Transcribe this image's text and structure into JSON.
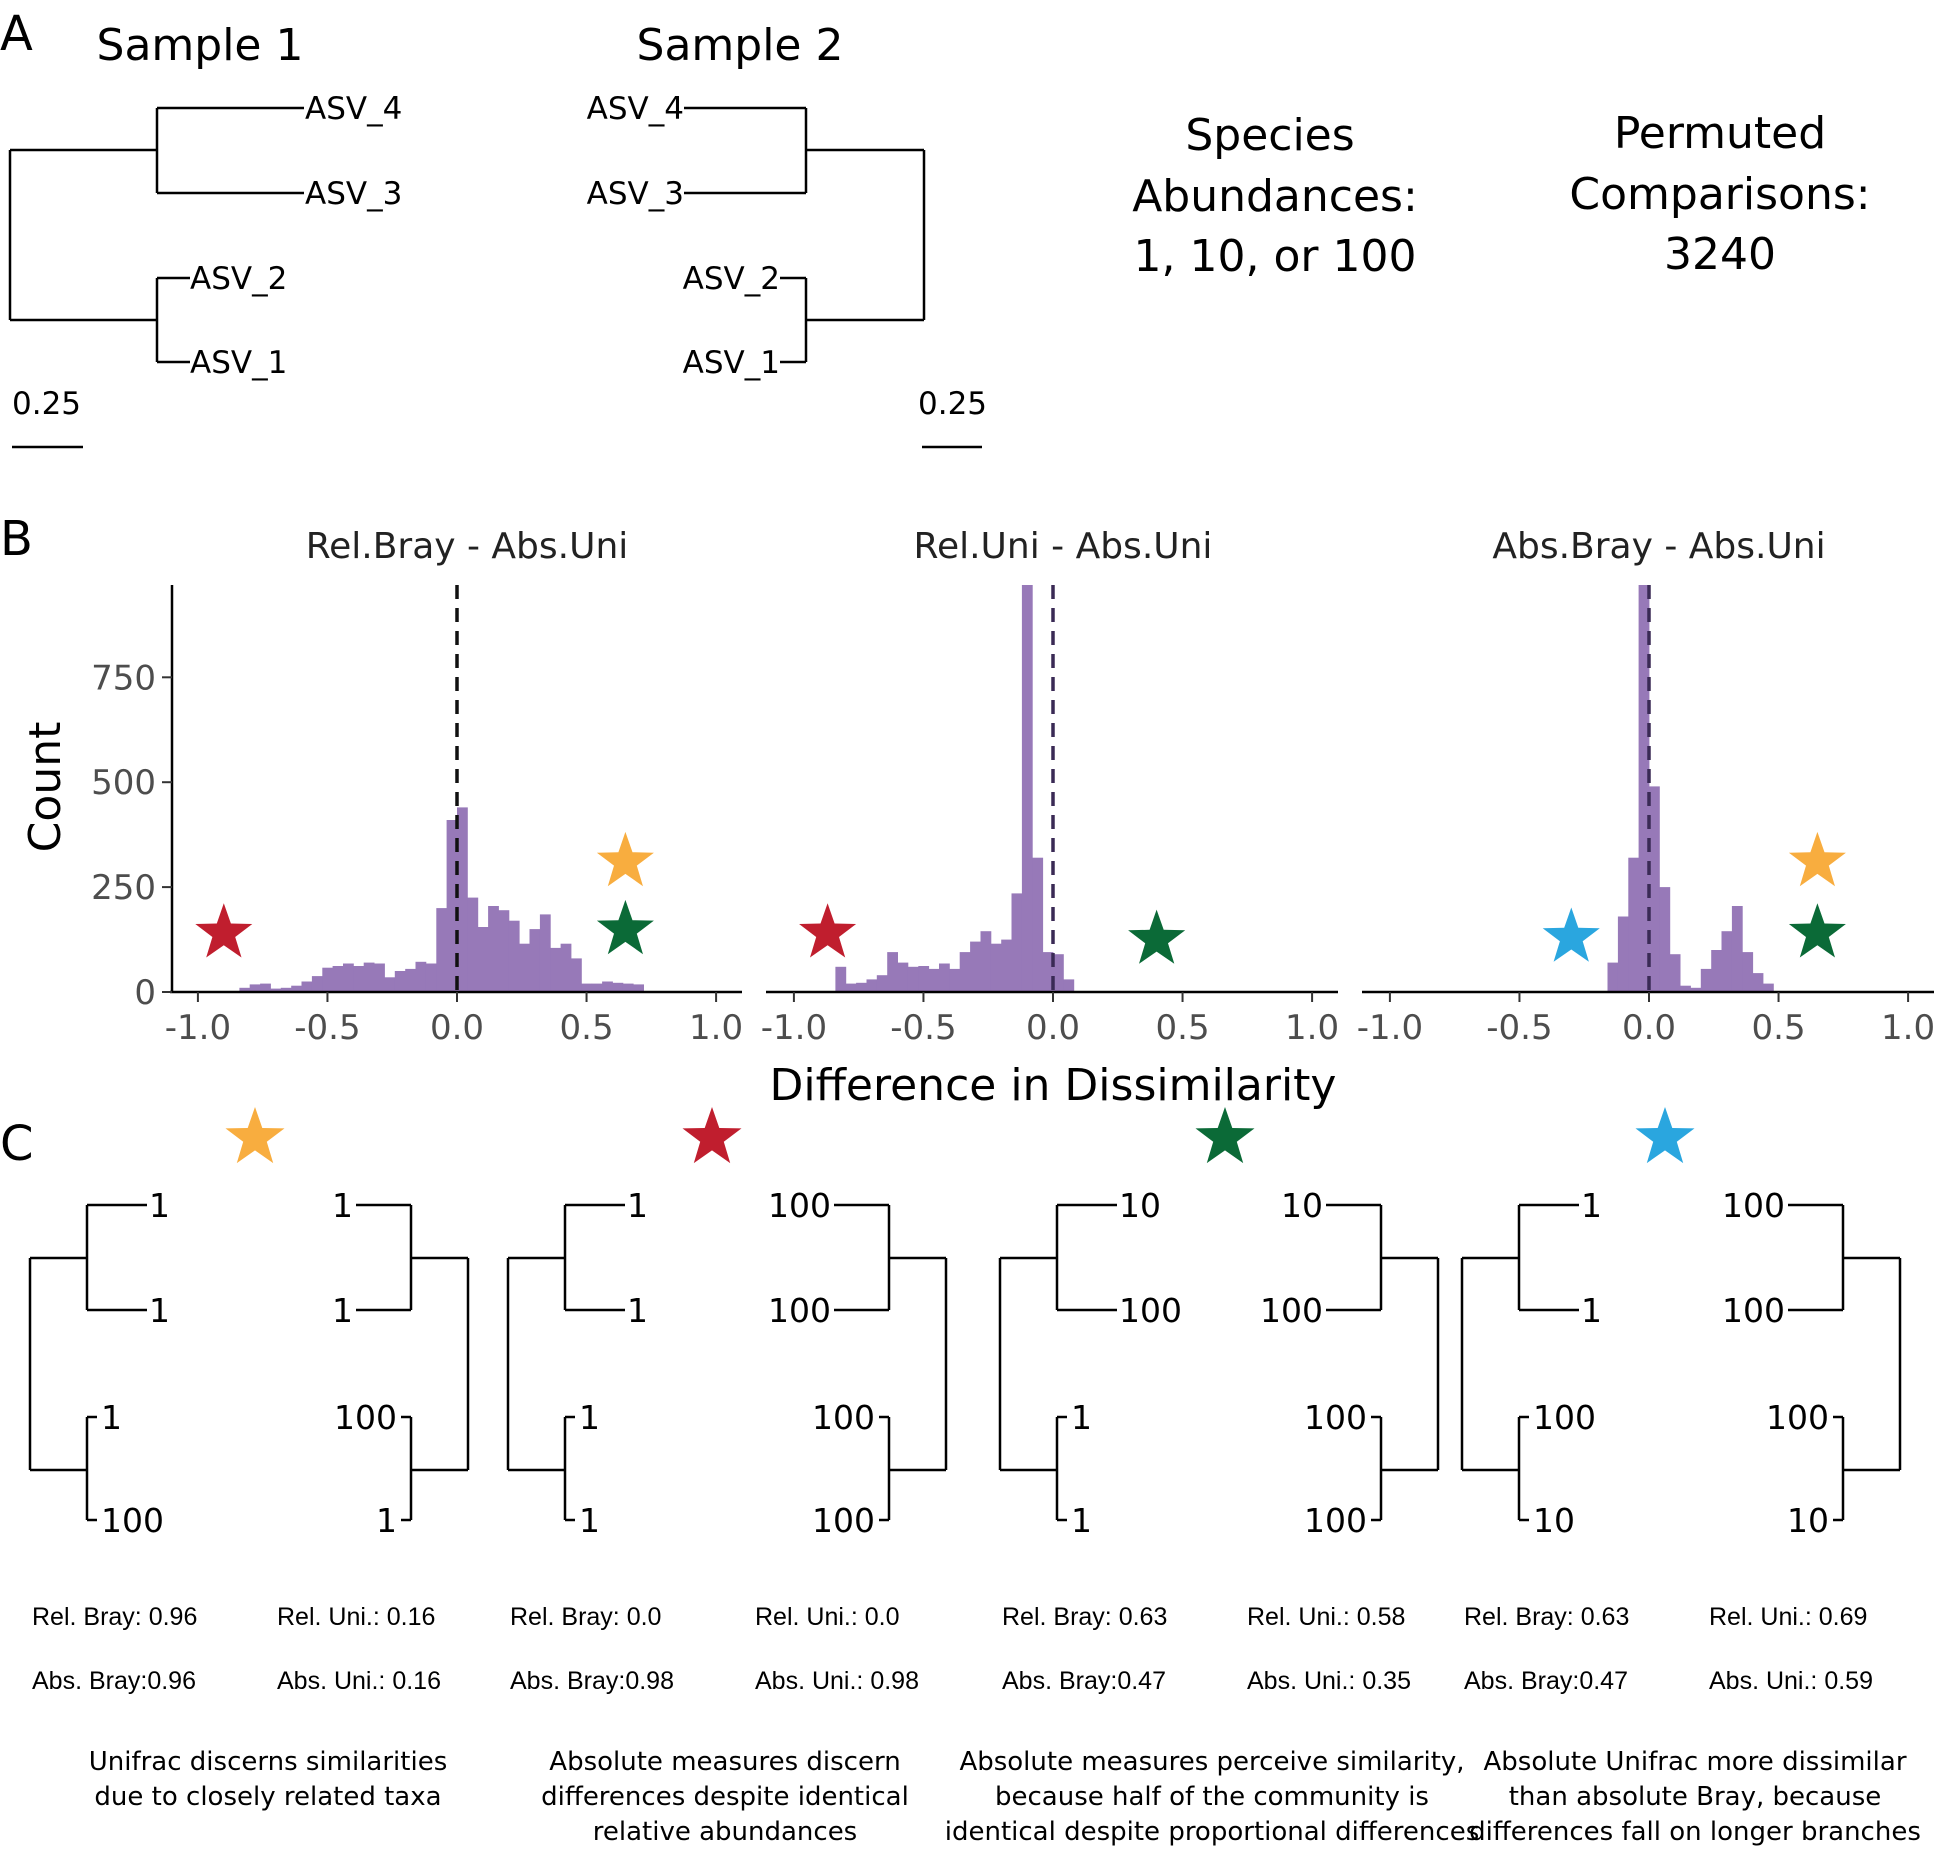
{
  "panels": {
    "a": "A",
    "b": "B",
    "c": "C"
  },
  "colors": {
    "bar": "#9779b8",
    "red": "#c01e2e",
    "orange": "#f8ad3f",
    "green": "#0b6a37",
    "blue": "#2aa6df"
  },
  "panel_a": {
    "sample1_title": "Sample 1",
    "sample2_title": "Sample 2",
    "tip_labels": [
      "ASV_4",
      "ASV_3",
      "ASV_2",
      "ASV_1"
    ],
    "scale_label": "0.25",
    "species_text": [
      "Species",
      "Abundances:",
      "1, 10, or 100"
    ],
    "permuted_text": [
      "Permuted",
      "Comparisons:",
      "3240"
    ]
  },
  "chart_data": {
    "type": "bar",
    "ylabel": "Count",
    "xlabel": "Difference in Dissimilarity",
    "xlim": [
      -1.0,
      1.0
    ],
    "ylim": [
      0,
      970
    ],
    "x_ticks": [
      -1.0,
      -0.5,
      0.0,
      0.5,
      1.0
    ],
    "x_tick_labels": [
      "-1.0",
      "-0.5",
      "0.0",
      "0.5",
      "1.0"
    ],
    "y_ticks": [
      0,
      250,
      500,
      750
    ],
    "y_tick_labels": [
      "0",
      "250",
      "500",
      "750"
    ],
    "bin_width": 0.04,
    "facets": [
      {
        "title": "Rel.Bray - Abs.Uni",
        "bin_start": -0.84,
        "counts": [
          10,
          18,
          20,
          8,
          10,
          15,
          25,
          38,
          58,
          62,
          68,
          62,
          70,
          68,
          35,
          50,
          55,
          72,
          68,
          200,
          410,
          440,
          225,
          155,
          205,
          195,
          170,
          115,
          150,
          185,
          105,
          115,
          80,
          20,
          20,
          25,
          22,
          20,
          18
        ]
      },
      {
        "title": "Rel.Uni - Abs.Uni",
        "bin_start": -0.84,
        "counts": [
          60,
          20,
          22,
          30,
          40,
          95,
          70,
          60,
          62,
          55,
          68,
          55,
          95,
          120,
          145,
          115,
          125,
          235,
          970,
          320,
          95,
          90,
          30
        ]
      },
      {
        "title": "Abs.Bray - Abs.Uni",
        "bin_start": -0.16,
        "counts": [
          70,
          180,
          320,
          970,
          490,
          250,
          90,
          15,
          10,
          55,
          100,
          145,
          205,
          95,
          45,
          20
        ]
      }
    ],
    "annotations": {
      "facet1_stars": [
        {
          "color": "red",
          "x": -0.9,
          "y": 140
        },
        {
          "color": "orange",
          "x": 0.65,
          "y": 310
        },
        {
          "color": "green",
          "x": 0.65,
          "y": 148
        }
      ],
      "facet2_stars": [
        {
          "color": "red",
          "x": -0.87,
          "y": 140
        },
        {
          "color": "green",
          "x": 0.4,
          "y": 125
        }
      ],
      "facet3_stars": [
        {
          "color": "blue",
          "x": -0.3,
          "y": 130
        },
        {
          "color": "orange",
          "x": 0.65,
          "y": 310
        },
        {
          "color": "green",
          "x": 0.65,
          "y": 140
        }
      ],
      "vline_x": 0.0
    }
  },
  "panel_c": {
    "examples": [
      {
        "star": "orange",
        "left_labels": [
          "1",
          "1",
          "1",
          "100"
        ],
        "right_labels": [
          "1",
          "1",
          "100",
          "1"
        ],
        "metric_left": [
          "Rel. Bray: 0.96",
          "Abs. Bray:0.96"
        ],
        "metric_right": [
          "Rel. Uni.:  0.16",
          "Abs. Uni.: 0.16"
        ],
        "caption": [
          "Unifrac discerns similarities",
          "due to closely related taxa"
        ]
      },
      {
        "star": "red",
        "left_labels": [
          "1",
          "1",
          "1",
          "1"
        ],
        "right_labels": [
          "100",
          "100",
          "100",
          "100"
        ],
        "metric_left": [
          "Rel. Bray: 0.0",
          "Abs. Bray:0.98"
        ],
        "metric_right": [
          "Rel. Uni.:  0.0",
          "Abs. Uni.: 0.98"
        ],
        "caption": [
          "Absolute measures discern",
          "differences despite identical",
          "relative abundances"
        ]
      },
      {
        "star": "green",
        "left_labels": [
          "10",
          "100",
          "1",
          "1"
        ],
        "right_labels": [
          "10",
          "100",
          "100",
          "100"
        ],
        "metric_left": [
          "Rel. Bray: 0.63",
          "Abs. Bray:0.47"
        ],
        "metric_right": [
          "Rel. Uni.:  0.58",
          "Abs. Uni.: 0.35"
        ],
        "caption": [
          "Absolute measures perceive similarity,",
          "because half of the community is",
          "identical despite proportional differences"
        ]
      },
      {
        "star": "blue",
        "left_labels": [
          "1",
          "1",
          "100",
          "10"
        ],
        "right_labels": [
          "100",
          "100",
          "100",
          "10"
        ],
        "metric_left": [
          "Rel. Bray: 0.63",
          "Abs. Bray:0.47"
        ],
        "metric_right": [
          "Rel. Uni.:  0.69",
          "Abs. Uni.: 0.59"
        ],
        "caption": [
          "Absolute Unifrac more dissimilar",
          "than absolute Bray, because",
          "differences fall on longer branches"
        ]
      }
    ]
  }
}
